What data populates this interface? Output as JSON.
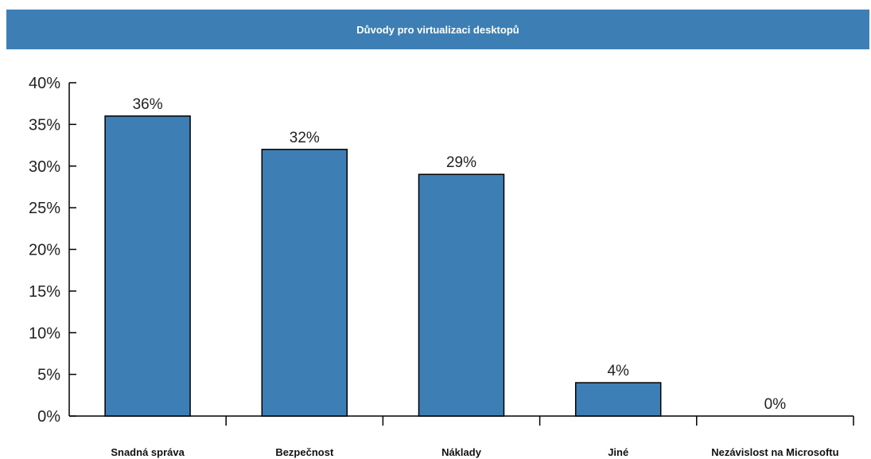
{
  "chart_data": {
    "type": "bar",
    "title": "Důvody pro virtualizaci desktopů",
    "categories": [
      "Snadná správa",
      "Bezpečnost",
      "Náklady",
      "Jiné",
      "Nezávislost na Microsoftu"
    ],
    "values": [
      36,
      32,
      29,
      4,
      0
    ],
    "data_labels": [
      "36%",
      "32%",
      "29%",
      "4%",
      "0%"
    ],
    "xlabel": "",
    "ylabel": "",
    "ylim": [
      0,
      40
    ],
    "yticks": [
      0,
      5,
      10,
      15,
      20,
      25,
      30,
      35,
      40
    ],
    "ytick_labels": [
      "0%",
      "5%",
      "10%",
      "15%",
      "20%",
      "25%",
      "30%",
      "35%",
      "40%"
    ],
    "grid": false,
    "legend": "none",
    "bar_color": "#3d7fb5",
    "title_background": "#3d7fb5"
  }
}
